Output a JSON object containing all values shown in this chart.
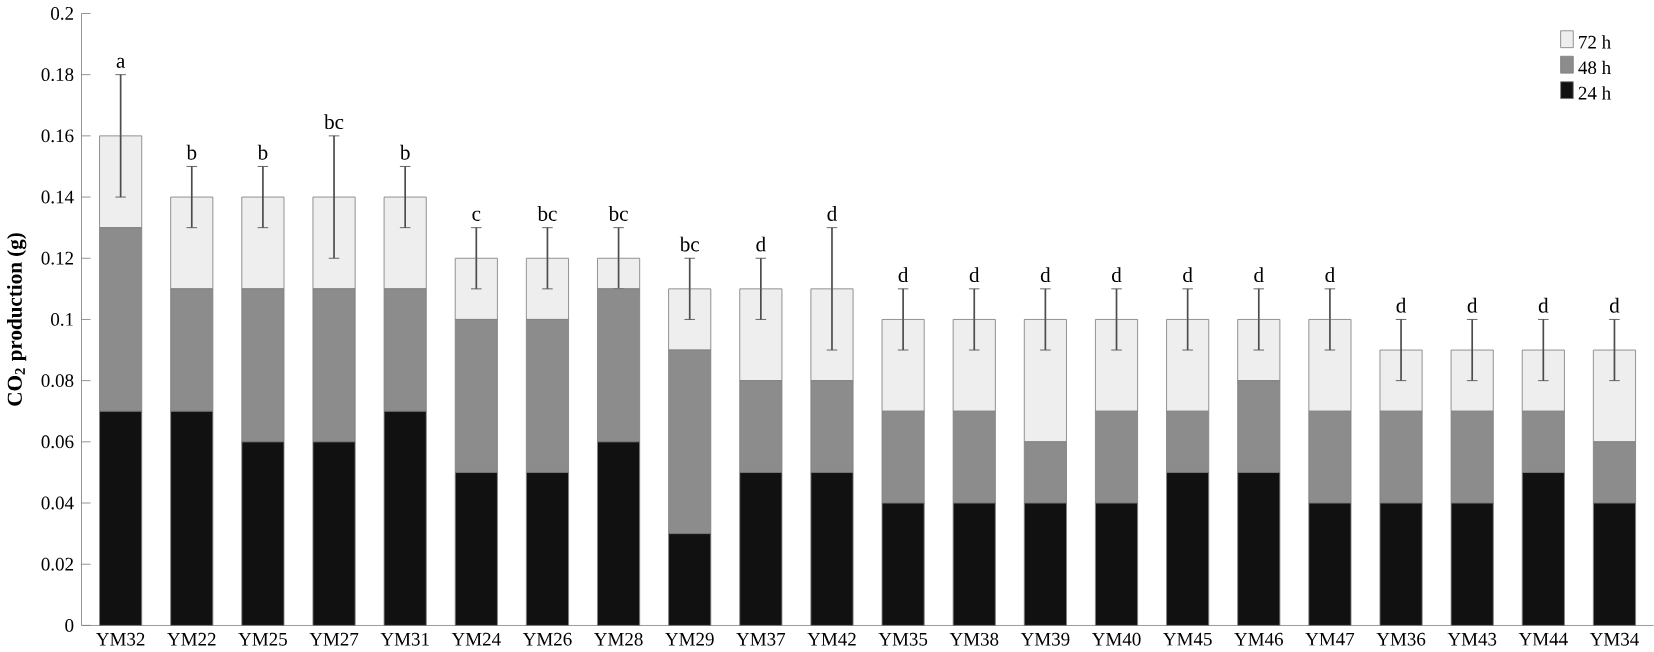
{
  "chart_data": {
    "type": "bar",
    "stacked": true,
    "ylabel": "CO$_{2}$ production (g)",
    "categories": [
      "YM32",
      "YM22",
      "YM25",
      "YM27",
      "YM31",
      "YM24",
      "YM26",
      "YM28",
      "YM29",
      "YM37",
      "YM42",
      "YM35",
      "YM38",
      "YM39",
      "YM40",
      "YM45",
      "YM46",
      "YM47",
      "YM36",
      "YM43",
      "YM44",
      "YM34"
    ],
    "series": [
      {
        "name": "24 h",
        "color": "#111111",
        "values": [
          0.07,
          0.07,
          0.06,
          0.06,
          0.07,
          0.05,
          0.05,
          0.06,
          0.03,
          0.05,
          0.05,
          0.04,
          0.04,
          0.04,
          0.04,
          0.05,
          0.05,
          0.04,
          0.04,
          0.04,
          0.05,
          0.04
        ]
      },
      {
        "name": "48 h",
        "color": "#8c8c8c",
        "values": [
          0.06,
          0.04,
          0.05,
          0.05,
          0.04,
          0.05,
          0.05,
          0.05,
          0.06,
          0.03,
          0.03,
          0.03,
          0.03,
          0.02,
          0.03,
          0.02,
          0.03,
          0.03,
          0.03,
          0.03,
          0.02,
          0.02
        ]
      },
      {
        "name": "72 h",
        "color": "#eeeeee",
        "values": [
          0.03,
          0.03,
          0.03,
          0.03,
          0.03,
          0.02,
          0.02,
          0.01,
          0.02,
          0.03,
          0.03,
          0.03,
          0.03,
          0.04,
          0.03,
          0.03,
          0.02,
          0.03,
          0.02,
          0.02,
          0.02,
          0.03
        ],
        "errors": [
          0.02,
          0.01,
          0.01,
          0.02,
          0.01,
          0.01,
          0.01,
          0.01,
          0.01,
          0.01,
          0.02,
          0.01,
          0.01,
          0.01,
          0.01,
          0.01,
          0.01,
          0.01,
          0.01,
          0.01,
          0.01,
          0.01
        ]
      }
    ],
    "ylim": [
      0,
      0.2
    ],
    "yticks": [
      0,
      0.02,
      0.04,
      0.06,
      0.08,
      0.1,
      0.12,
      0.14,
      0.16,
      0.18,
      0.2
    ],
    "legend": "top right",
    "grid": false,
    "annotations": [
      {
        "text": "a",
        "x": "YM32",
        "y": 0.18
      },
      {
        "text": "b",
        "x": "YM22",
        "y": 0.15
      },
      {
        "text": "b",
        "x": "YM25",
        "y": 0.15
      },
      {
        "text": "bc",
        "x": "YM27",
        "y": 0.16
      },
      {
        "text": "b",
        "x": "YM31",
        "y": 0.15
      },
      {
        "text": "c",
        "x": "YM24",
        "y": 0.13
      },
      {
        "text": "bc",
        "x": "YM26",
        "y": 0.13
      },
      {
        "text": "bc",
        "x": "YM28",
        "y": 0.13
      },
      {
        "text": "bc",
        "x": "YM29",
        "y": 0.12
      },
      {
        "text": "d",
        "x": "YM37",
        "y": 0.12
      },
      {
        "text": "d",
        "x": "YM42",
        "y": 0.13
      },
      {
        "text": "d",
        "x": "YM35",
        "y": 0.11
      },
      {
        "text": "d",
        "x": "YM38",
        "y": 0.11
      },
      {
        "text": "d",
        "x": "YM39",
        "y": 0.11
      },
      {
        "text": "d",
        "x": "YM40",
        "y": 0.11
      },
      {
        "text": "d",
        "x": "YM45",
        "y": 0.11
      },
      {
        "text": "d",
        "x": "YM46",
        "y": 0.11
      },
      {
        "text": "d",
        "x": "YM47",
        "y": 0.11
      },
      {
        "text": "d",
        "x": "YM36",
        "y": 0.1
      },
      {
        "text": "d",
        "x": "YM43",
        "y": 0.1
      },
      {
        "text": "d",
        "x": "YM44",
        "y": 0.1
      },
      {
        "text": "d",
        "x": "YM34",
        "y": 0.1
      }
    ]
  }
}
